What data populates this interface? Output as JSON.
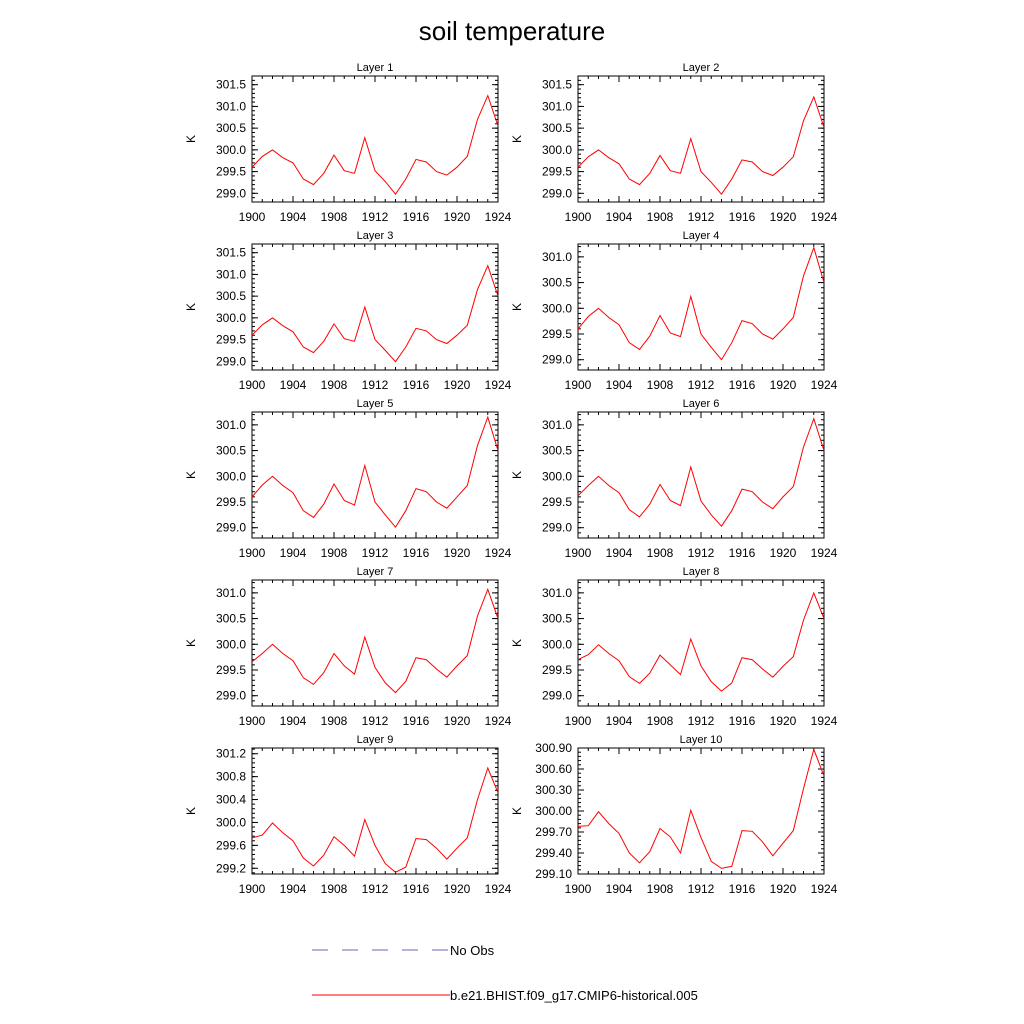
{
  "title": "soil temperature",
  "colors": {
    "model": "#ff0000",
    "obs": "#6a6ab4",
    "axis": "#000000"
  },
  "legend": {
    "obs_label": "No Obs",
    "model_label": "b.e21.BHIST.f09_g17.CMIP6-historical.005"
  },
  "chart_data": [
    {
      "type": "line",
      "title": "Layer 1",
      "ylabel": "K",
      "xlim": [
        1900,
        1924
      ],
      "ylim": [
        298.8,
        301.7
      ],
      "xticks": [
        "1900",
        "1904",
        "1908",
        "1912",
        "1916",
        "1920",
        "1924"
      ],
      "yticks": [
        "299.0",
        "299.5",
        "300.0",
        "300.5",
        "301.0",
        "301.5"
      ],
      "series": [
        {
          "name": "b.e21.BHIST.f09_g17.CMIP6-historical.005",
          "x": [
            1900,
            1901,
            1902,
            1903,
            1904,
            1905,
            1906,
            1907,
            1908,
            1909,
            1910,
            1911,
            1912,
            1913,
            1914,
            1915,
            1916,
            1917,
            1918,
            1919,
            1920,
            1921,
            1922,
            1923,
            1924
          ],
          "y": [
            299.6,
            299.85,
            300.0,
            299.82,
            299.7,
            299.33,
            299.2,
            299.46,
            299.88,
            299.52,
            299.46,
            300.28,
            299.52,
            299.27,
            298.98,
            299.33,
            299.78,
            299.72,
            299.5,
            299.42,
            299.6,
            299.85,
            300.7,
            301.25,
            300.55
          ]
        }
      ]
    },
    {
      "type": "line",
      "title": "Layer 2",
      "ylabel": "K",
      "xlim": [
        1900,
        1924
      ],
      "ylim": [
        298.8,
        301.7
      ],
      "xticks": [
        "1900",
        "1904",
        "1908",
        "1912",
        "1916",
        "1920",
        "1924"
      ],
      "yticks": [
        "299.0",
        "299.5",
        "300.0",
        "300.5",
        "301.0",
        "301.5"
      ],
      "series": [
        {
          "name": "b.e21.BHIST.f09_g17.CMIP6-historical.005",
          "x": [
            1900,
            1901,
            1902,
            1903,
            1904,
            1905,
            1906,
            1907,
            1908,
            1909,
            1910,
            1911,
            1912,
            1913,
            1914,
            1915,
            1916,
            1917,
            1918,
            1919,
            1920,
            1921,
            1922,
            1923,
            1924
          ],
          "y": [
            299.6,
            299.84,
            300.0,
            299.82,
            299.68,
            299.33,
            299.2,
            299.46,
            299.87,
            299.52,
            299.46,
            300.26,
            299.5,
            299.25,
            298.98,
            299.33,
            299.77,
            299.72,
            299.5,
            299.41,
            299.6,
            299.84,
            300.67,
            301.22,
            300.52
          ]
        }
      ]
    },
    {
      "type": "line",
      "title": "Layer 3",
      "ylabel": "K",
      "xlim": [
        1900,
        1924
      ],
      "ylim": [
        298.8,
        301.7
      ],
      "xticks": [
        "1900",
        "1904",
        "1908",
        "1912",
        "1916",
        "1920",
        "1924"
      ],
      "yticks": [
        "299.0",
        "299.5",
        "300.0",
        "300.5",
        "301.0",
        "301.5"
      ],
      "series": [
        {
          "name": "b.e21.BHIST.f09_g17.CMIP6-historical.005",
          "x": [
            1900,
            1901,
            1902,
            1903,
            1904,
            1905,
            1906,
            1907,
            1908,
            1909,
            1910,
            1911,
            1912,
            1913,
            1914,
            1915,
            1916,
            1917,
            1918,
            1919,
            1920,
            1921,
            1922,
            1923,
            1924
          ],
          "y": [
            299.6,
            299.84,
            300.0,
            299.82,
            299.68,
            299.33,
            299.2,
            299.46,
            299.86,
            299.52,
            299.46,
            300.25,
            299.5,
            299.25,
            298.99,
            299.33,
            299.76,
            299.7,
            299.5,
            299.41,
            299.6,
            299.83,
            300.65,
            301.2,
            300.5
          ]
        }
      ]
    },
    {
      "type": "line",
      "title": "Layer 4",
      "ylabel": "K",
      "xlim": [
        1900,
        1924
      ],
      "ylim": [
        298.8,
        301.25
      ],
      "xticks": [
        "1900",
        "1904",
        "1908",
        "1912",
        "1916",
        "1920",
        "1924"
      ],
      "yticks": [
        "299.0",
        "299.5",
        "300.0",
        "300.5",
        "301.0"
      ],
      "series": [
        {
          "name": "b.e21.BHIST.f09_g17.CMIP6-historical.005",
          "x": [
            1900,
            1901,
            1902,
            1903,
            1904,
            1905,
            1906,
            1907,
            1908,
            1909,
            1910,
            1911,
            1912,
            1913,
            1914,
            1915,
            1916,
            1917,
            1918,
            1919,
            1920,
            1921,
            1922,
            1923,
            1924
          ],
          "y": [
            299.6,
            299.84,
            300.0,
            299.82,
            299.68,
            299.33,
            299.2,
            299.46,
            299.86,
            299.52,
            299.45,
            300.23,
            299.5,
            299.24,
            299.0,
            299.33,
            299.76,
            299.7,
            299.5,
            299.4,
            299.6,
            299.82,
            300.63,
            301.18,
            300.5
          ]
        }
      ]
    },
    {
      "type": "line",
      "title": "Layer 5",
      "ylabel": "K",
      "xlim": [
        1900,
        1924
      ],
      "ylim": [
        298.8,
        301.25
      ],
      "xticks": [
        "1900",
        "1904",
        "1908",
        "1912",
        "1916",
        "1920",
        "1924"
      ],
      "yticks": [
        "299.0",
        "299.5",
        "300.0",
        "300.5",
        "301.0"
      ],
      "series": [
        {
          "name": "b.e21.BHIST.f09_g17.CMIP6-historical.005",
          "x": [
            1900,
            1901,
            1902,
            1903,
            1904,
            1905,
            1906,
            1907,
            1908,
            1909,
            1910,
            1911,
            1912,
            1913,
            1914,
            1915,
            1916,
            1917,
            1918,
            1919,
            1920,
            1921,
            1922,
            1923,
            1924
          ],
          "y": [
            299.6,
            299.83,
            300.0,
            299.82,
            299.68,
            299.33,
            299.2,
            299.46,
            299.85,
            299.53,
            299.44,
            300.21,
            299.5,
            299.25,
            299.01,
            299.33,
            299.76,
            299.7,
            299.5,
            299.38,
            299.6,
            299.82,
            300.6,
            301.15,
            300.5
          ]
        }
      ]
    },
    {
      "type": "line",
      "title": "Layer 6",
      "ylabel": "K",
      "xlim": [
        1900,
        1924
      ],
      "ylim": [
        298.8,
        301.25
      ],
      "xticks": [
        "1900",
        "1904",
        "1908",
        "1912",
        "1916",
        "1920",
        "1924"
      ],
      "yticks": [
        "299.0",
        "299.5",
        "300.0",
        "300.5",
        "301.0"
      ],
      "series": [
        {
          "name": "b.e21.BHIST.f09_g17.CMIP6-historical.005",
          "x": [
            1900,
            1901,
            1902,
            1903,
            1904,
            1905,
            1906,
            1907,
            1908,
            1909,
            1910,
            1911,
            1912,
            1913,
            1914,
            1915,
            1916,
            1917,
            1918,
            1919,
            1920,
            1921,
            1922,
            1923,
            1924
          ],
          "y": [
            299.62,
            299.82,
            300.0,
            299.82,
            299.68,
            299.35,
            299.21,
            299.46,
            299.84,
            299.53,
            299.43,
            300.18,
            299.52,
            299.25,
            299.03,
            299.33,
            299.75,
            299.7,
            299.5,
            299.37,
            299.6,
            299.8,
            300.57,
            301.12,
            300.5
          ]
        }
      ]
    },
    {
      "type": "line",
      "title": "Layer 7",
      "ylabel": "K",
      "xlim": [
        1900,
        1924
      ],
      "ylim": [
        298.8,
        301.25
      ],
      "xticks": [
        "1900",
        "1904",
        "1908",
        "1912",
        "1916",
        "1920",
        "1924"
      ],
      "yticks": [
        "299.0",
        "299.5",
        "300.0",
        "300.5",
        "301.0"
      ],
      "series": [
        {
          "name": "b.e21.BHIST.f09_g17.CMIP6-historical.005",
          "x": [
            1900,
            1901,
            1902,
            1903,
            1904,
            1905,
            1906,
            1907,
            1908,
            1909,
            1910,
            1911,
            1912,
            1913,
            1914,
            1915,
            1916,
            1917,
            1918,
            1919,
            1920,
            1921,
            1922,
            1923,
            1924
          ],
          "y": [
            299.66,
            299.82,
            300.0,
            299.82,
            299.68,
            299.35,
            299.22,
            299.45,
            299.82,
            299.58,
            299.42,
            300.14,
            299.55,
            299.25,
            299.06,
            299.28,
            299.74,
            299.7,
            299.52,
            299.36,
            299.58,
            299.78,
            300.55,
            301.07,
            300.5
          ]
        }
      ]
    },
    {
      "type": "line",
      "title": "Layer 8",
      "ylabel": "K",
      "xlim": [
        1900,
        1924
      ],
      "ylim": [
        298.8,
        301.25
      ],
      "xticks": [
        "1900",
        "1904",
        "1908",
        "1912",
        "1916",
        "1920",
        "1924"
      ],
      "yticks": [
        "299.0",
        "299.5",
        "300.0",
        "300.5",
        "301.0"
      ],
      "series": [
        {
          "name": "b.e21.BHIST.f09_g17.CMIP6-historical.005",
          "x": [
            1900,
            1901,
            1902,
            1903,
            1904,
            1905,
            1906,
            1907,
            1908,
            1909,
            1910,
            1911,
            1912,
            1913,
            1914,
            1915,
            1916,
            1917,
            1918,
            1919,
            1920,
            1921,
            1922,
            1923,
            1924
          ],
          "y": [
            299.7,
            299.8,
            299.99,
            299.82,
            299.68,
            299.37,
            299.24,
            299.44,
            299.79,
            299.6,
            299.41,
            300.1,
            299.58,
            299.27,
            299.09,
            299.25,
            299.74,
            299.7,
            299.52,
            299.36,
            299.57,
            299.76,
            300.47,
            301.0,
            300.5
          ]
        }
      ]
    },
    {
      "type": "line",
      "title": "Layer 9",
      "ylabel": "K",
      "xlim": [
        1900,
        1924
      ],
      "ylim": [
        299.1,
        301.3
      ],
      "xticks": [
        "1900",
        "1904",
        "1908",
        "1912",
        "1916",
        "1920",
        "1924"
      ],
      "yticks": [
        "299.2",
        "299.6",
        "300.0",
        "300.4",
        "300.8",
        "301.2"
      ],
      "series": [
        {
          "name": "b.e21.BHIST.f09_g17.CMIP6-historical.005",
          "x": [
            1900,
            1901,
            1902,
            1903,
            1904,
            1905,
            1906,
            1907,
            1908,
            1909,
            1910,
            1911,
            1912,
            1913,
            1914,
            1915,
            1916,
            1917,
            1918,
            1919,
            1920,
            1921,
            1922,
            1923,
            1924
          ],
          "y": [
            299.73,
            299.78,
            299.99,
            299.82,
            299.68,
            299.38,
            299.24,
            299.43,
            299.75,
            299.6,
            299.41,
            300.05,
            299.6,
            299.28,
            299.13,
            299.22,
            299.72,
            299.7,
            299.55,
            299.36,
            299.55,
            299.73,
            300.4,
            300.95,
            300.52
          ]
        }
      ]
    },
    {
      "type": "line",
      "title": "Layer 10",
      "ylabel": "K",
      "xlim": [
        1900,
        1924
      ],
      "ylim": [
        299.1,
        300.9
      ],
      "xticks": [
        "1900",
        "1904",
        "1908",
        "1912",
        "1916",
        "1920",
        "1924"
      ],
      "yticks": [
        "299.10",
        "299.40",
        "299.70",
        "300.00",
        "300.30",
        "300.60",
        "300.90"
      ],
      "series": [
        {
          "name": "b.e21.BHIST.f09_g17.CMIP6-historical.005",
          "x": [
            1900,
            1901,
            1902,
            1903,
            1904,
            1905,
            1906,
            1907,
            1908,
            1909,
            1910,
            1911,
            1912,
            1913,
            1914,
            1915,
            1916,
            1917,
            1918,
            1919,
            1920,
            1921,
            1922,
            1923,
            1924
          ],
          "y": [
            299.78,
            299.79,
            299.99,
            299.82,
            299.68,
            299.4,
            299.26,
            299.42,
            299.75,
            299.63,
            299.4,
            300.01,
            299.62,
            299.28,
            299.18,
            299.21,
            299.72,
            299.71,
            299.56,
            299.36,
            299.54,
            299.72,
            300.32,
            300.88,
            300.5
          ]
        }
      ]
    }
  ]
}
